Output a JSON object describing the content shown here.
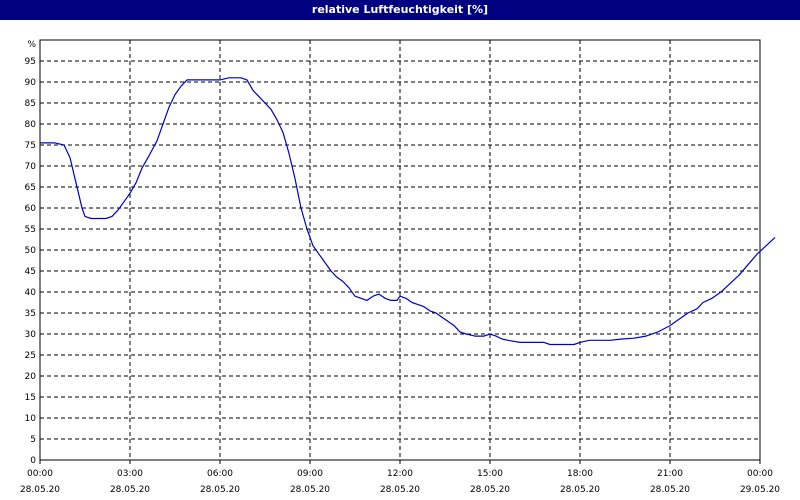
{
  "chart_data": {
    "type": "line",
    "title": "relative Luftfeuchtigkeit [%]",
    "ylabel": "%",
    "xlabel": "",
    "ylim": [
      0,
      100
    ],
    "yticks": [
      0,
      5,
      10,
      15,
      20,
      25,
      30,
      35,
      40,
      45,
      50,
      55,
      60,
      65,
      70,
      75,
      80,
      85,
      90,
      95
    ],
    "xlim_hours": [
      0,
      24
    ],
    "xticks": [
      {
        "hour": 0,
        "time": "00:00",
        "date": "28.05.20"
      },
      {
        "hour": 3,
        "time": "03:00",
        "date": "28.05.20"
      },
      {
        "hour": 6,
        "time": "06:00",
        "date": "28.05.20"
      },
      {
        "hour": 9,
        "time": "09:00",
        "date": "28.05.20"
      },
      {
        "hour": 12,
        "time": "12:00",
        "date": "28.05.20"
      },
      {
        "hour": 15,
        "time": "15:00",
        "date": "28.05.20"
      },
      {
        "hour": 18,
        "time": "18:00",
        "date": "28.05.20"
      },
      {
        "hour": 21,
        "time": "21:00",
        "date": "28.05.20"
      },
      {
        "hour": 24,
        "time": "00:00",
        "date": "29.05.20"
      }
    ],
    "grid": true,
    "series": [
      {
        "color": "#0000cc",
        "points": [
          [
            0.0,
            75.5
          ],
          [
            0.5,
            75.5
          ],
          [
            0.8,
            75.0
          ],
          [
            1.0,
            72.0
          ],
          [
            1.2,
            66.0
          ],
          [
            1.4,
            60.0
          ],
          [
            1.5,
            58.0
          ],
          [
            1.7,
            57.5
          ],
          [
            2.0,
            57.5
          ],
          [
            2.2,
            57.5
          ],
          [
            2.4,
            58.0
          ],
          [
            2.6,
            59.5
          ],
          [
            2.8,
            61.5
          ],
          [
            3.0,
            63.5
          ],
          [
            3.2,
            66.0
          ],
          [
            3.4,
            69.5
          ],
          [
            3.6,
            72.0
          ],
          [
            3.9,
            76.0
          ],
          [
            4.1,
            80.0
          ],
          [
            4.3,
            84.0
          ],
          [
            4.5,
            87.0
          ],
          [
            4.7,
            89.0
          ],
          [
            4.9,
            90.5
          ],
          [
            5.2,
            90.5
          ],
          [
            5.6,
            90.5
          ],
          [
            6.0,
            90.5
          ],
          [
            6.3,
            91.0
          ],
          [
            6.7,
            91.0
          ],
          [
            6.9,
            90.5
          ],
          [
            7.1,
            88.0
          ],
          [
            7.3,
            86.5
          ],
          [
            7.5,
            85.0
          ],
          [
            7.7,
            83.5
          ],
          [
            7.9,
            81.0
          ],
          [
            8.1,
            78.0
          ],
          [
            8.3,
            73.0
          ],
          [
            8.5,
            67.0
          ],
          [
            8.7,
            60.0
          ],
          [
            8.9,
            55.0
          ],
          [
            9.1,
            51.0
          ],
          [
            9.3,
            49.0
          ],
          [
            9.5,
            47.0
          ],
          [
            9.7,
            45.0
          ],
          [
            9.9,
            43.5
          ],
          [
            10.1,
            42.5
          ],
          [
            10.3,
            41.0
          ],
          [
            10.5,
            39.0
          ],
          [
            10.7,
            38.5
          ],
          [
            10.9,
            38.0
          ],
          [
            11.1,
            39.0
          ],
          [
            11.3,
            39.5
          ],
          [
            11.5,
            38.5
          ],
          [
            11.7,
            38.0
          ],
          [
            11.9,
            38.0
          ],
          [
            12.0,
            39.0
          ],
          [
            12.2,
            38.5
          ],
          [
            12.4,
            37.5
          ],
          [
            12.6,
            37.0
          ],
          [
            12.8,
            36.5
          ],
          [
            13.0,
            35.5
          ],
          [
            13.2,
            35.0
          ],
          [
            13.4,
            34.0
          ],
          [
            13.6,
            33.0
          ],
          [
            13.8,
            32.0
          ],
          [
            14.0,
            30.5
          ],
          [
            14.2,
            30.0
          ],
          [
            14.5,
            29.5
          ],
          [
            14.8,
            29.5
          ],
          [
            15.0,
            30.0
          ],
          [
            15.2,
            29.5
          ],
          [
            15.4,
            28.8
          ],
          [
            15.6,
            28.5
          ],
          [
            16.0,
            28.0
          ],
          [
            16.4,
            28.0
          ],
          [
            16.8,
            28.0
          ],
          [
            17.0,
            27.5
          ],
          [
            17.3,
            27.5
          ],
          [
            17.6,
            27.5
          ],
          [
            17.8,
            27.5
          ],
          [
            18.0,
            28.0
          ],
          [
            18.3,
            28.5
          ],
          [
            18.6,
            28.5
          ],
          [
            19.0,
            28.5
          ],
          [
            19.4,
            28.8
          ],
          [
            19.8,
            29.0
          ],
          [
            20.2,
            29.5
          ],
          [
            20.6,
            30.5
          ],
          [
            21.0,
            32.0
          ],
          [
            21.3,
            33.5
          ],
          [
            21.6,
            35.0
          ],
          [
            21.9,
            36.0
          ],
          [
            22.1,
            37.5
          ],
          [
            22.4,
            38.5
          ],
          [
            22.7,
            40.0
          ],
          [
            23.0,
            42.0
          ],
          [
            23.3,
            44.0
          ],
          [
            23.6,
            46.5
          ],
          [
            23.9,
            49.0
          ],
          [
            24.2,
            51.0
          ],
          [
            24.5,
            53.0
          ]
        ]
      }
    ]
  }
}
